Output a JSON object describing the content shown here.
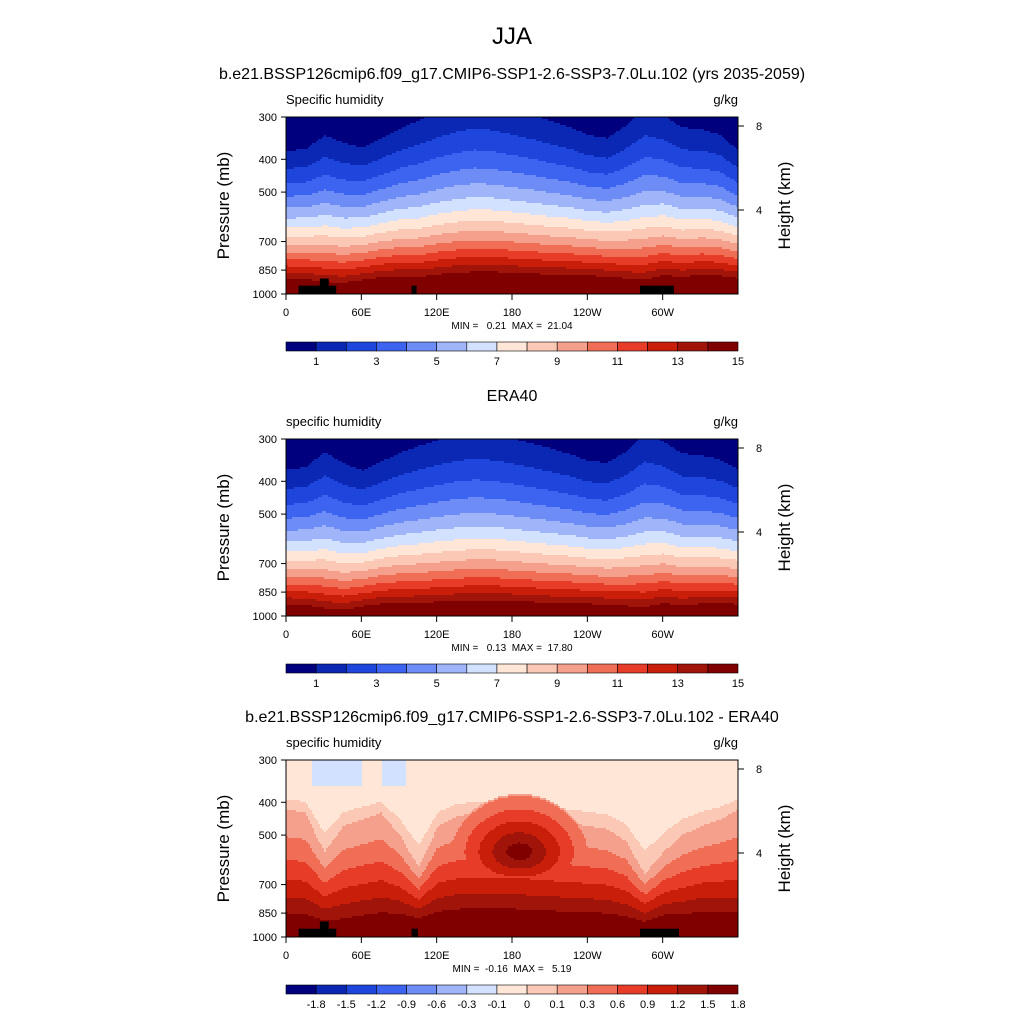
{
  "figure": {
    "title": "JJA"
  },
  "colors": {
    "abs_palette": [
      "#00007f",
      "#0a28b4",
      "#1e46dc",
      "#3c64f0",
      "#6e8cf5",
      "#a0b4fa",
      "#d2e1ff",
      "#ffe6d7",
      "#fac8b4",
      "#f5a08c",
      "#f06e55",
      "#e63c28",
      "#c81e0a",
      "#a0140a",
      "#800000"
    ],
    "diff_palette": [
      "#00007f",
      "#0a28b4",
      "#1e46dc",
      "#3c64f0",
      "#6e8cf5",
      "#a0b4fa",
      "#d2e1ff",
      "#ffe6d7",
      "#fac8b4",
      "#f5a08c",
      "#f06e55",
      "#e63c28",
      "#c81e0a",
      "#a0140a",
      "#800000"
    ],
    "topography": "#000000"
  },
  "chart_data": [
    {
      "type": "contour",
      "title": "b.e21.BSSP126cmip6.f09_g17.CMIP6-SSP1-2.6-SSP3-7.0Lu.102 (yrs 2035-2059)",
      "left_label": "Specific humidity",
      "right_label": "g/kg",
      "xlabel": "",
      "ylabel": "Pressure (mb)",
      "ylabel_right": "Height (km)",
      "x_ticks": [
        "0",
        "60E",
        "120E",
        "180",
        "120W",
        "60W"
      ],
      "x_tick_values": [
        0,
        60,
        120,
        180,
        240,
        300
      ],
      "xlim": [
        0,
        360
      ],
      "y_ticks": [
        "300",
        "400",
        "500",
        "700",
        "850",
        "1000"
      ],
      "y_tick_values": [
        300,
        400,
        500,
        700,
        850,
        1000
      ],
      "ylim": [
        1000,
        300
      ],
      "height_ticks": [
        "8",
        "4"
      ],
      "height_tick_values": [
        8,
        4
      ],
      "stats": "MIN =   0.21  MAX =  21.04",
      "min": 0.21,
      "max": 21.04,
      "colorbar_labels": [
        "1",
        "3",
        "5",
        "7",
        "9",
        "11",
        "13",
        "15"
      ],
      "colorbar_levels": [
        1,
        3,
        5,
        7,
        9,
        11,
        13,
        15
      ],
      "field": {
        "longitudes": [
          0,
          15,
          30,
          45,
          60,
          75,
          90,
          105,
          120,
          135,
          150,
          165,
          180,
          195,
          210,
          225,
          240,
          255,
          270,
          285,
          300,
          315,
          330,
          345,
          360
        ],
        "surface_pressure_mb": [
          935,
          940,
          960,
          965,
          945,
          930,
          925,
          930,
          915,
          905,
          900,
          900,
          905,
          910,
          915,
          915,
          920,
          925,
          940,
          950,
          920,
          930,
          915,
          920,
          935
        ],
        "moist_top_mb": [
          580,
          570,
          500,
          535,
          560,
          520,
          475,
          440,
          410,
          385,
          370,
          380,
          400,
          420,
          445,
          470,
          505,
          520,
          460,
          385,
          420,
          470,
          480,
          505,
          580
        ]
      },
      "topography": [
        {
          "lon_start": 10,
          "lon_end": 40,
          "top_mb": 945
        },
        {
          "lon_start": 27,
          "lon_end": 34,
          "top_mb": 900
        },
        {
          "lon_start": 100,
          "lon_end": 104,
          "top_mb": 945
        },
        {
          "lon_start": 282,
          "lon_end": 309,
          "top_mb": 945
        }
      ]
    },
    {
      "type": "contour",
      "title": "ERA40",
      "left_label": "specific humidity",
      "right_label": "g/kg",
      "xlabel": "",
      "ylabel": "Pressure (mb)",
      "ylabel_right": "Height (km)",
      "x_ticks": [
        "0",
        "60E",
        "120E",
        "180",
        "120W",
        "60W"
      ],
      "x_tick_values": [
        0,
        60,
        120,
        180,
        240,
        300
      ],
      "xlim": [
        0,
        360
      ],
      "y_ticks": [
        "300",
        "400",
        "500",
        "700",
        "850",
        "1000"
      ],
      "y_tick_values": [
        300,
        400,
        500,
        700,
        850,
        1000
      ],
      "ylim": [
        1000,
        300
      ],
      "height_ticks": [
        "8",
        "4"
      ],
      "height_tick_values": [
        8,
        4
      ],
      "stats": "MIN =   0.13  MAX =  17.80",
      "min": 0.13,
      "max": 17.8,
      "colorbar_labels": [
        "1",
        "3",
        "5",
        "7",
        "9",
        "11",
        "13",
        "15"
      ],
      "colorbar_levels": [
        1,
        3,
        5,
        7,
        9,
        11,
        13,
        15
      ],
      "field": {
        "longitudes": [
          0,
          15,
          30,
          45,
          60,
          75,
          90,
          105,
          120,
          135,
          150,
          165,
          180,
          195,
          210,
          225,
          240,
          255,
          270,
          285,
          300,
          315,
          330,
          345,
          360
        ],
        "surface_pressure_mb": [
          960,
          965,
          990,
          1000,
          975,
          960,
          955,
          955,
          950,
          945,
          940,
          940,
          945,
          950,
          955,
          955,
          960,
          965,
          975,
          985,
          960,
          970,
          960,
          960,
          960
        ],
        "moist_top_mb": [
          560,
          545,
          470,
          520,
          560,
          520,
          480,
          450,
          425,
          405,
          395,
          405,
          420,
          440,
          460,
          485,
          515,
          525,
          470,
          395,
          430,
          480,
          490,
          510,
          560
        ]
      },
      "topography": []
    },
    {
      "type": "contour",
      "title": "b.e21.BSSP126cmip6.f09_g17.CMIP6-SSP1-2.6-SSP3-7.0Lu.102 - ERA40",
      "left_label": "specific humidity",
      "right_label": "g/kg",
      "xlabel": "",
      "ylabel": "Pressure (mb)",
      "ylabel_right": "Height (km)",
      "x_ticks": [
        "0",
        "60E",
        "120E",
        "180",
        "120W",
        "60W"
      ],
      "x_tick_values": [
        0,
        60,
        120,
        180,
        240,
        300
      ],
      "xlim": [
        0,
        360
      ],
      "y_ticks": [
        "300",
        "400",
        "500",
        "700",
        "850",
        "1000"
      ],
      "y_tick_values": [
        300,
        400,
        500,
        700,
        850,
        1000
      ],
      "ylim": [
        1000,
        300
      ],
      "height_ticks": [
        "8",
        "4"
      ],
      "height_tick_values": [
        8,
        4
      ],
      "stats": "MIN =  -0.16  MAX =   5.19",
      "min": -0.16,
      "max": 5.19,
      "colorbar_labels": [
        "-1.8",
        "-1.5",
        "-1.2",
        "-0.9",
        "-0.6",
        "-0.3",
        "-0.1",
        "0",
        "0.1",
        "0.3",
        "0.6",
        "0.9",
        "1.2",
        "1.5",
        "1.8"
      ],
      "colorbar_levels": [
        -1.8,
        -1.5,
        -1.2,
        -0.9,
        -0.6,
        -0.3,
        -0.1,
        0,
        0.1,
        0.3,
        0.6,
        0.9,
        1.2,
        1.5,
        1.8
      ],
      "field": {
        "longitudes": [
          0,
          15,
          30,
          45,
          60,
          75,
          90,
          105,
          120,
          135,
          150,
          165,
          180,
          195,
          210,
          225,
          240,
          255,
          270,
          285,
          300,
          315,
          330,
          345,
          360
        ],
        "surface_pressure_mb": [
          935,
          940,
          960,
          965,
          945,
          930,
          925,
          930,
          915,
          905,
          900,
          900,
          905,
          910,
          915,
          915,
          920,
          925,
          940,
          950,
          920,
          930,
          915,
          920,
          935
        ],
        "weak_top_mb": [
          420,
          430,
          560,
          470,
          450,
          430,
          500,
          620,
          470,
          440,
          430,
          430,
          430,
          440,
          450,
          460,
          470,
          480,
          520,
          650,
          560,
          500,
          470,
          450,
          420
        ],
        "strong_center_lon": 185,
        "strong_center_mb": 560
      },
      "topography": [
        {
          "lon_start": 10,
          "lon_end": 40,
          "top_mb": 945
        },
        {
          "lon_start": 27,
          "lon_end": 34,
          "top_mb": 900
        },
        {
          "lon_start": 100,
          "lon_end": 105,
          "top_mb": 945
        },
        {
          "lon_start": 282,
          "lon_end": 313,
          "top_mb": 945
        }
      ]
    }
  ]
}
